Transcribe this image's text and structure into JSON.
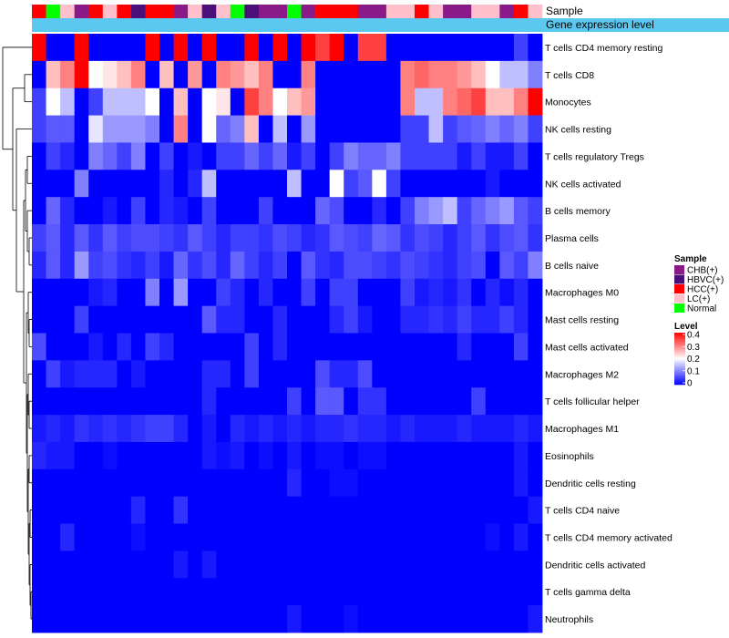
{
  "chart_data": {
    "type": "heatmap",
    "annotation_track_label": "Sample",
    "gene_expression_label": "Gene expression level",
    "sample_groups": [
      "HCC(+)",
      "Normal",
      "LC(+)",
      "CHB(+)",
      "HCC(+)",
      "LC(+)",
      "HCC(+)",
      "HBVC(+)",
      "HCC(+)",
      "HCC(+)",
      "CHB(+)",
      "LC(+)",
      "HBVC(+)",
      "LC(+)",
      "Normal",
      "HBVC(+)",
      "CHB(+)",
      "CHB(+)",
      "Normal",
      "CHB(+)",
      "HCC(+)",
      "HCC(+)",
      "HCC(+)",
      "CHB(+)",
      "CHB(+)",
      "LC(+)",
      "LC(+)",
      "HCC(+)",
      "LC(+)",
      "CHB(+)",
      "CHB(+)",
      "LC(+)",
      "LC(+)",
      "CHB(+)",
      "HCC(+)",
      "LC(+)"
    ],
    "rows": [
      "T cells CD4 memory resting",
      "T cells CD8",
      "Monocytes",
      "NK cells resting",
      "T cells regulatory  Tregs",
      "NK cells activated",
      "B cells memory",
      "Plasma cells",
      "B cells naive",
      "Macrophages M0",
      "Mast cells resting",
      "Mast cells activated",
      "Macrophages M2",
      "T cells follicular helper",
      "Macrophages M1",
      "Eosinophils",
      "Dendritic cells resting",
      "T cells CD4 naive",
      "T cells CD4 memory activated",
      "Dendritic cells activated",
      "T cells gamma delta",
      "Neutrophils"
    ],
    "values": [
      [
        0.4,
        0,
        0,
        0.4,
        0,
        0,
        0,
        0,
        0.4,
        0,
        0.4,
        0,
        0.4,
        0,
        0,
        0.4,
        0,
        0.4,
        0,
        0.4,
        0.35,
        0.4,
        0,
        0.35,
        0.35,
        0,
        0,
        0,
        0,
        0,
        0,
        0,
        0,
        0,
        0.05,
        0
      ],
      [
        0,
        0.25,
        0.3,
        0.4,
        0.2,
        0.22,
        0.25,
        0.3,
        0,
        0.25,
        0,
        0.28,
        0,
        0.3,
        0.28,
        0.25,
        0.3,
        0,
        0,
        0.3,
        0,
        0,
        0,
        0,
        0,
        0,
        0.3,
        0.32,
        0.3,
        0.3,
        0.28,
        0.25,
        0.2,
        0.15,
        0.15,
        0.1
      ],
      [
        0.05,
        0.2,
        0.15,
        0,
        0.05,
        0.15,
        0.15,
        0.15,
        0.2,
        0,
        0.25,
        0,
        0.2,
        0.22,
        0,
        0.35,
        0.3,
        0.2,
        0.25,
        0.28,
        0,
        0,
        0,
        0,
        0,
        0,
        0.3,
        0.15,
        0.15,
        0.3,
        0.32,
        0.35,
        0.25,
        0.25,
        0.3,
        0.4
      ],
      [
        0.05,
        0.07,
        0.07,
        0,
        0.18,
        0.12,
        0.12,
        0.12,
        0.1,
        0,
        0.3,
        0,
        0.2,
        0.08,
        0.1,
        0.25,
        0,
        0.15,
        0,
        0.12,
        0,
        0,
        0,
        0,
        0,
        0,
        0.05,
        0.05,
        0.15,
        0.05,
        0.07,
        0.08,
        0.1,
        0.08,
        0.1,
        0.05
      ],
      [
        0,
        0.05,
        0.03,
        0,
        0.1,
        0.08,
        0.05,
        0.1,
        0,
        0.05,
        0,
        0.02,
        0,
        0.05,
        0.05,
        0.08,
        0.05,
        0.08,
        0.02,
        0.05,
        0,
        0.05,
        0.1,
        0.08,
        0.08,
        0.1,
        0.05,
        0.05,
        0.05,
        0.05,
        0.02,
        0.05,
        0.02,
        0.02,
        0.05,
        0
      ],
      [
        0,
        0,
        0,
        0.1,
        0,
        0,
        0,
        0,
        0,
        0.03,
        0,
        0.03,
        0.15,
        0,
        0,
        0,
        0,
        0,
        0.15,
        0,
        0,
        0.2,
        0.05,
        0.07,
        0.2,
        0.05,
        0,
        0,
        0,
        0,
        0,
        0,
        0.02,
        0,
        0,
        0
      ],
      [
        0,
        0.08,
        0.03,
        0,
        0,
        0.02,
        0,
        0.05,
        0,
        0.03,
        0.02,
        0,
        0.05,
        0,
        0,
        0,
        0.05,
        0,
        0,
        0,
        0.08,
        0.06,
        0,
        0,
        0.03,
        0,
        0.05,
        0.1,
        0.12,
        0.15,
        0.05,
        0.08,
        0.1,
        0.12,
        0.07,
        0.05
      ],
      [
        0.05,
        0.07,
        0.03,
        0.07,
        0.04,
        0.07,
        0.05,
        0.06,
        0.06,
        0.05,
        0.04,
        0.07,
        0.05,
        0.03,
        0.05,
        0.05,
        0.04,
        0.06,
        0.05,
        0.03,
        0.04,
        0.07,
        0.06,
        0.05,
        0.08,
        0.07,
        0.04,
        0.06,
        0.05,
        0.03,
        0.05,
        0.07,
        0.04,
        0.06,
        0.07,
        0.04
      ],
      [
        0.03,
        0.07,
        0.03,
        0.12,
        0.05,
        0.06,
        0.04,
        0.03,
        0.05,
        0.02,
        0.08,
        0.04,
        0.06,
        0.03,
        0.08,
        0.05,
        0.03,
        0.05,
        0,
        0.07,
        0.04,
        0.03,
        0.06,
        0.06,
        0.05,
        0.04,
        0.06,
        0.05,
        0.04,
        0.03,
        0.05,
        0.06,
        0,
        0.07,
        0.05,
        0.1
      ],
      [
        0,
        0,
        0,
        0,
        0.02,
        0.03,
        0,
        0,
        0.1,
        0,
        0.12,
        0,
        0,
        0.05,
        0.03,
        0,
        0.03,
        0,
        0,
        0.05,
        0,
        0.05,
        0.05,
        0,
        0,
        0,
        0.05,
        0.02,
        0.03,
        0.02,
        0.04,
        0,
        0.03,
        0.01,
        0.03,
        0
      ],
      [
        0,
        0,
        0,
        0.05,
        0,
        0,
        0,
        0,
        0,
        0,
        0,
        0,
        0.07,
        0.03,
        0.03,
        0,
        0,
        0.03,
        0,
        0,
        0,
        0.03,
        0.05,
        0.02,
        0,
        0,
        0.03,
        0.03,
        0.04,
        0.03,
        0.05,
        0.03,
        0.03,
        0.05,
        0.03,
        0
      ],
      [
        0.06,
        0,
        0,
        0,
        0.02,
        0,
        0.03,
        0,
        0.05,
        0.03,
        0,
        0,
        0,
        0,
        0,
        0.05,
        0,
        0.03,
        0,
        0,
        0,
        0,
        0,
        0,
        0,
        0,
        0,
        0,
        0,
        0,
        0.03,
        0,
        0,
        0,
        0.05,
        0
      ],
      [
        0,
        0.05,
        0.02,
        0.03,
        0.03,
        0.03,
        0,
        0.02,
        0,
        0,
        0,
        0,
        0.03,
        0.03,
        0,
        0.05,
        0,
        0,
        0,
        0,
        0.06,
        0.03,
        0.03,
        0.06,
        0,
        0,
        0,
        0,
        0,
        0,
        0,
        0,
        0,
        0,
        0,
        0
      ],
      [
        0,
        0,
        0,
        0,
        0,
        0,
        0,
        0,
        0,
        0,
        0,
        0,
        0.03,
        0,
        0,
        0,
        0,
        0,
        0.05,
        0,
        0.07,
        0.07,
        0,
        0.04,
        0.04,
        0,
        0,
        0,
        0,
        0,
        0,
        0.05,
        0,
        0,
        0,
        0
      ],
      [
        0.02,
        0.03,
        0.02,
        0.04,
        0.03,
        0.04,
        0.03,
        0.04,
        0.05,
        0.05,
        0.03,
        0,
        0.02,
        0,
        0.03,
        0.02,
        0.03,
        0.02,
        0.03,
        0.02,
        0.03,
        0.03,
        0.04,
        0.03,
        0.03,
        0.02,
        0.03,
        0.02,
        0.02,
        0.02,
        0.03,
        0.02,
        0.02,
        0.02,
        0.03,
        0.02
      ],
      [
        0.03,
        0.02,
        0.02,
        0,
        0,
        0.01,
        0,
        0,
        0,
        0,
        0,
        0,
        0.02,
        0.01,
        0.02,
        0,
        0.01,
        0,
        0.02,
        0,
        0.01,
        0.01,
        0,
        0.01,
        0.01,
        0,
        0,
        0,
        0,
        0,
        0,
        0,
        0,
        0,
        0.02,
        0
      ],
      [
        0,
        0,
        0,
        0,
        0,
        0,
        0,
        0,
        0,
        0,
        0,
        0,
        0,
        0,
        0,
        0,
        0,
        0,
        0.03,
        0,
        0,
        0.01,
        0.01,
        0,
        0,
        0,
        0,
        0,
        0,
        0,
        0,
        0,
        0,
        0,
        0.02,
        0
      ],
      [
        0,
        0,
        0,
        0,
        0,
        0,
        0,
        0.03,
        0,
        0,
        0.04,
        0,
        0,
        0,
        0,
        0,
        0,
        0,
        0,
        0,
        0,
        0,
        0,
        0,
        0,
        0,
        0,
        0,
        0,
        0,
        0,
        0,
        0,
        0,
        0,
        0.02
      ],
      [
        0,
        0,
        0.03,
        0,
        0,
        0,
        0,
        0.01,
        0,
        0,
        0,
        0,
        0,
        0,
        0,
        0,
        0,
        0,
        0,
        0,
        0,
        0,
        0,
        0,
        0,
        0,
        0,
        0,
        0,
        0,
        0,
        0,
        0.01,
        0,
        0.02,
        0
      ],
      [
        0,
        0,
        0,
        0,
        0,
        0,
        0,
        0,
        0,
        0,
        0.02,
        0,
        0.02,
        0,
        0,
        0,
        0,
        0,
        0,
        0,
        0,
        0,
        0,
        0,
        0,
        0,
        0,
        0,
        0,
        0,
        0,
        0,
        0,
        0,
        0,
        0
      ],
      [
        0,
        0,
        0,
        0,
        0,
        0,
        0,
        0,
        0,
        0,
        0,
        0,
        0,
        0,
        0,
        0,
        0,
        0,
        0,
        0,
        0,
        0,
        0,
        0,
        0,
        0,
        0,
        0,
        0,
        0,
        0,
        0,
        0,
        0,
        0,
        0
      ],
      [
        0,
        0,
        0,
        0,
        0,
        0,
        0,
        0,
        0,
        0,
        0,
        0,
        0,
        0,
        0,
        0,
        0,
        0,
        0.02,
        0,
        0,
        0,
        0.01,
        0,
        0,
        0,
        0,
        0,
        0,
        0,
        0,
        0,
        0,
        0,
        0,
        0.02
      ]
    ],
    "legend_sample": {
      "title": "Sample",
      "entries": [
        {
          "label": "CHB(+)",
          "color": "#8B1A89"
        },
        {
          "label": "HBVC(+)",
          "color": "#4B0F7A"
        },
        {
          "label": "HCC(+)",
          "color": "#FF0000"
        },
        {
          "label": "LC(+)",
          "color": "#FFC0CB"
        },
        {
          "label": "Normal",
          "color": "#00FF00"
        }
      ]
    },
    "legend_level": {
      "title": "Level",
      "ticks": [
        "0.4",
        "0.3",
        "0.2",
        "0.1",
        "0"
      ],
      "range": [
        0,
        0.4
      ]
    },
    "colors": {
      "low": "#0000FF",
      "mid": "#FFFFFF",
      "high": "#FF0000",
      "expression_bar": "#5BC8F0"
    }
  }
}
